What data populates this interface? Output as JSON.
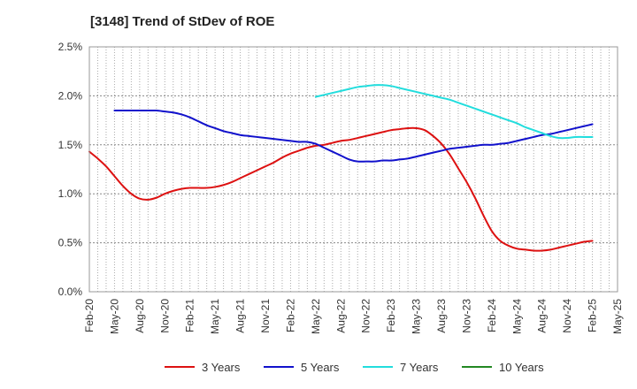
{
  "chart_data": {
    "type": "line",
    "title": "[3148]  Trend of StDev of ROE",
    "xlabel": "",
    "ylabel": "",
    "ylim": [
      0,
      2.5
    ],
    "y_ticks": [
      "0.0%",
      "0.5%",
      "1.0%",
      "1.5%",
      "2.0%",
      "2.5%"
    ],
    "x_ticks": [
      "Feb-20",
      "May-20",
      "Aug-20",
      "Nov-20",
      "Feb-21",
      "May-21",
      "Aug-21",
      "Nov-21",
      "Feb-22",
      "May-22",
      "Aug-22",
      "Nov-22",
      "Feb-23",
      "May-23",
      "Aug-23",
      "Nov-23",
      "Feb-24",
      "May-24",
      "Aug-24",
      "Nov-24",
      "Feb-25",
      "May-25"
    ],
    "grid": true,
    "legend_position": "bottom",
    "series": [
      {
        "name": "3 Years",
        "color": "#dd1111",
        "x": [
          "Feb-20",
          "Mar-20",
          "Apr-20",
          "May-20",
          "Jun-20",
          "Jul-20",
          "Aug-20",
          "Sep-20",
          "Oct-20",
          "Nov-20",
          "Dec-20",
          "Jan-21",
          "Feb-21",
          "Mar-21",
          "Apr-21",
          "May-21",
          "Jun-21",
          "Jul-21",
          "Aug-21",
          "Sep-21",
          "Oct-21",
          "Nov-21",
          "Dec-21",
          "Jan-22",
          "Feb-22",
          "Mar-22",
          "Apr-22",
          "May-22",
          "Jun-22",
          "Jul-22",
          "Aug-22",
          "Sep-22",
          "Oct-22",
          "Nov-22",
          "Dec-22",
          "Jan-23",
          "Feb-23",
          "Mar-23",
          "Apr-23",
          "May-23",
          "Jun-23",
          "Jul-23",
          "Aug-23",
          "Sep-23",
          "Oct-23",
          "Nov-23",
          "Dec-23",
          "Jan-24",
          "Feb-24",
          "Mar-24",
          "Apr-24",
          "May-24",
          "Jun-24",
          "Jul-24",
          "Aug-24",
          "Sep-24",
          "Oct-24",
          "Nov-24",
          "Dec-24",
          "Jan-25",
          "Feb-25"
        ],
        "values": [
          1.43,
          1.36,
          1.28,
          1.18,
          1.08,
          1.0,
          0.95,
          0.94,
          0.96,
          1.0,
          1.03,
          1.05,
          1.06,
          1.06,
          1.06,
          1.07,
          1.09,
          1.12,
          1.16,
          1.2,
          1.24,
          1.28,
          1.32,
          1.37,
          1.41,
          1.44,
          1.47,
          1.49,
          1.5,
          1.52,
          1.54,
          1.55,
          1.57,
          1.59,
          1.61,
          1.63,
          1.65,
          1.66,
          1.67,
          1.67,
          1.65,
          1.59,
          1.51,
          1.4,
          1.26,
          1.12,
          0.96,
          0.78,
          0.62,
          0.52,
          0.47,
          0.44,
          0.43,
          0.42,
          0.42,
          0.43,
          0.45,
          0.47,
          0.49,
          0.51,
          0.52
        ]
      },
      {
        "name": "5 Years",
        "color": "#1111cc",
        "x": [
          "May-20",
          "Jun-20",
          "Jul-20",
          "Aug-20",
          "Sep-20",
          "Oct-20",
          "Nov-20",
          "Dec-20",
          "Jan-21",
          "Feb-21",
          "Mar-21",
          "Apr-21",
          "May-21",
          "Jun-21",
          "Jul-21",
          "Aug-21",
          "Sep-21",
          "Oct-21",
          "Nov-21",
          "Dec-21",
          "Jan-22",
          "Feb-22",
          "Mar-22",
          "Apr-22",
          "May-22",
          "Jun-22",
          "Jul-22",
          "Aug-22",
          "Sep-22",
          "Oct-22",
          "Nov-22",
          "Dec-22",
          "Jan-23",
          "Feb-23",
          "Mar-23",
          "Apr-23",
          "May-23",
          "Jun-23",
          "Jul-23",
          "Aug-23",
          "Sep-23",
          "Oct-23",
          "Nov-23",
          "Dec-23",
          "Jan-24",
          "Feb-24",
          "Mar-24",
          "Apr-24",
          "May-24",
          "Jun-24",
          "Jul-24",
          "Aug-24",
          "Sep-24",
          "Oct-24",
          "Nov-24",
          "Dec-24",
          "Jan-25",
          "Feb-25"
        ],
        "values": [
          1.85,
          1.85,
          1.85,
          1.85,
          1.85,
          1.85,
          1.84,
          1.83,
          1.81,
          1.78,
          1.74,
          1.7,
          1.67,
          1.64,
          1.62,
          1.6,
          1.59,
          1.58,
          1.57,
          1.56,
          1.55,
          1.54,
          1.53,
          1.53,
          1.51,
          1.47,
          1.43,
          1.39,
          1.35,
          1.33,
          1.33,
          1.33,
          1.34,
          1.34,
          1.35,
          1.36,
          1.38,
          1.4,
          1.42,
          1.44,
          1.46,
          1.47,
          1.48,
          1.49,
          1.5,
          1.5,
          1.51,
          1.52,
          1.54,
          1.56,
          1.58,
          1.6,
          1.61,
          1.63,
          1.65,
          1.67,
          1.69,
          1.71
        ]
      },
      {
        "name": "7 Years",
        "color": "#22dddd",
        "x": [
          "May-22",
          "Jun-22",
          "Jul-22",
          "Aug-22",
          "Sep-22",
          "Oct-22",
          "Nov-22",
          "Dec-22",
          "Jan-23",
          "Feb-23",
          "Mar-23",
          "Apr-23",
          "May-23",
          "Jun-23",
          "Jul-23",
          "Aug-23",
          "Sep-23",
          "Oct-23",
          "Nov-23",
          "Dec-23",
          "Jan-24",
          "Feb-24",
          "Mar-24",
          "Apr-24",
          "May-24",
          "Jun-24",
          "Jul-24",
          "Aug-24",
          "Sep-24",
          "Oct-24",
          "Nov-24",
          "Dec-24",
          "Jan-25",
          "Feb-25"
        ],
        "values": [
          1.99,
          2.01,
          2.03,
          2.05,
          2.07,
          2.09,
          2.1,
          2.11,
          2.11,
          2.1,
          2.08,
          2.06,
          2.04,
          2.02,
          2.0,
          1.98,
          1.96,
          1.93,
          1.9,
          1.87,
          1.84,
          1.81,
          1.78,
          1.75,
          1.72,
          1.68,
          1.65,
          1.62,
          1.59,
          1.57,
          1.57,
          1.58,
          1.58,
          1.58
        ]
      },
      {
        "name": "10 Years",
        "color": "#228822",
        "x": [],
        "values": []
      }
    ]
  }
}
